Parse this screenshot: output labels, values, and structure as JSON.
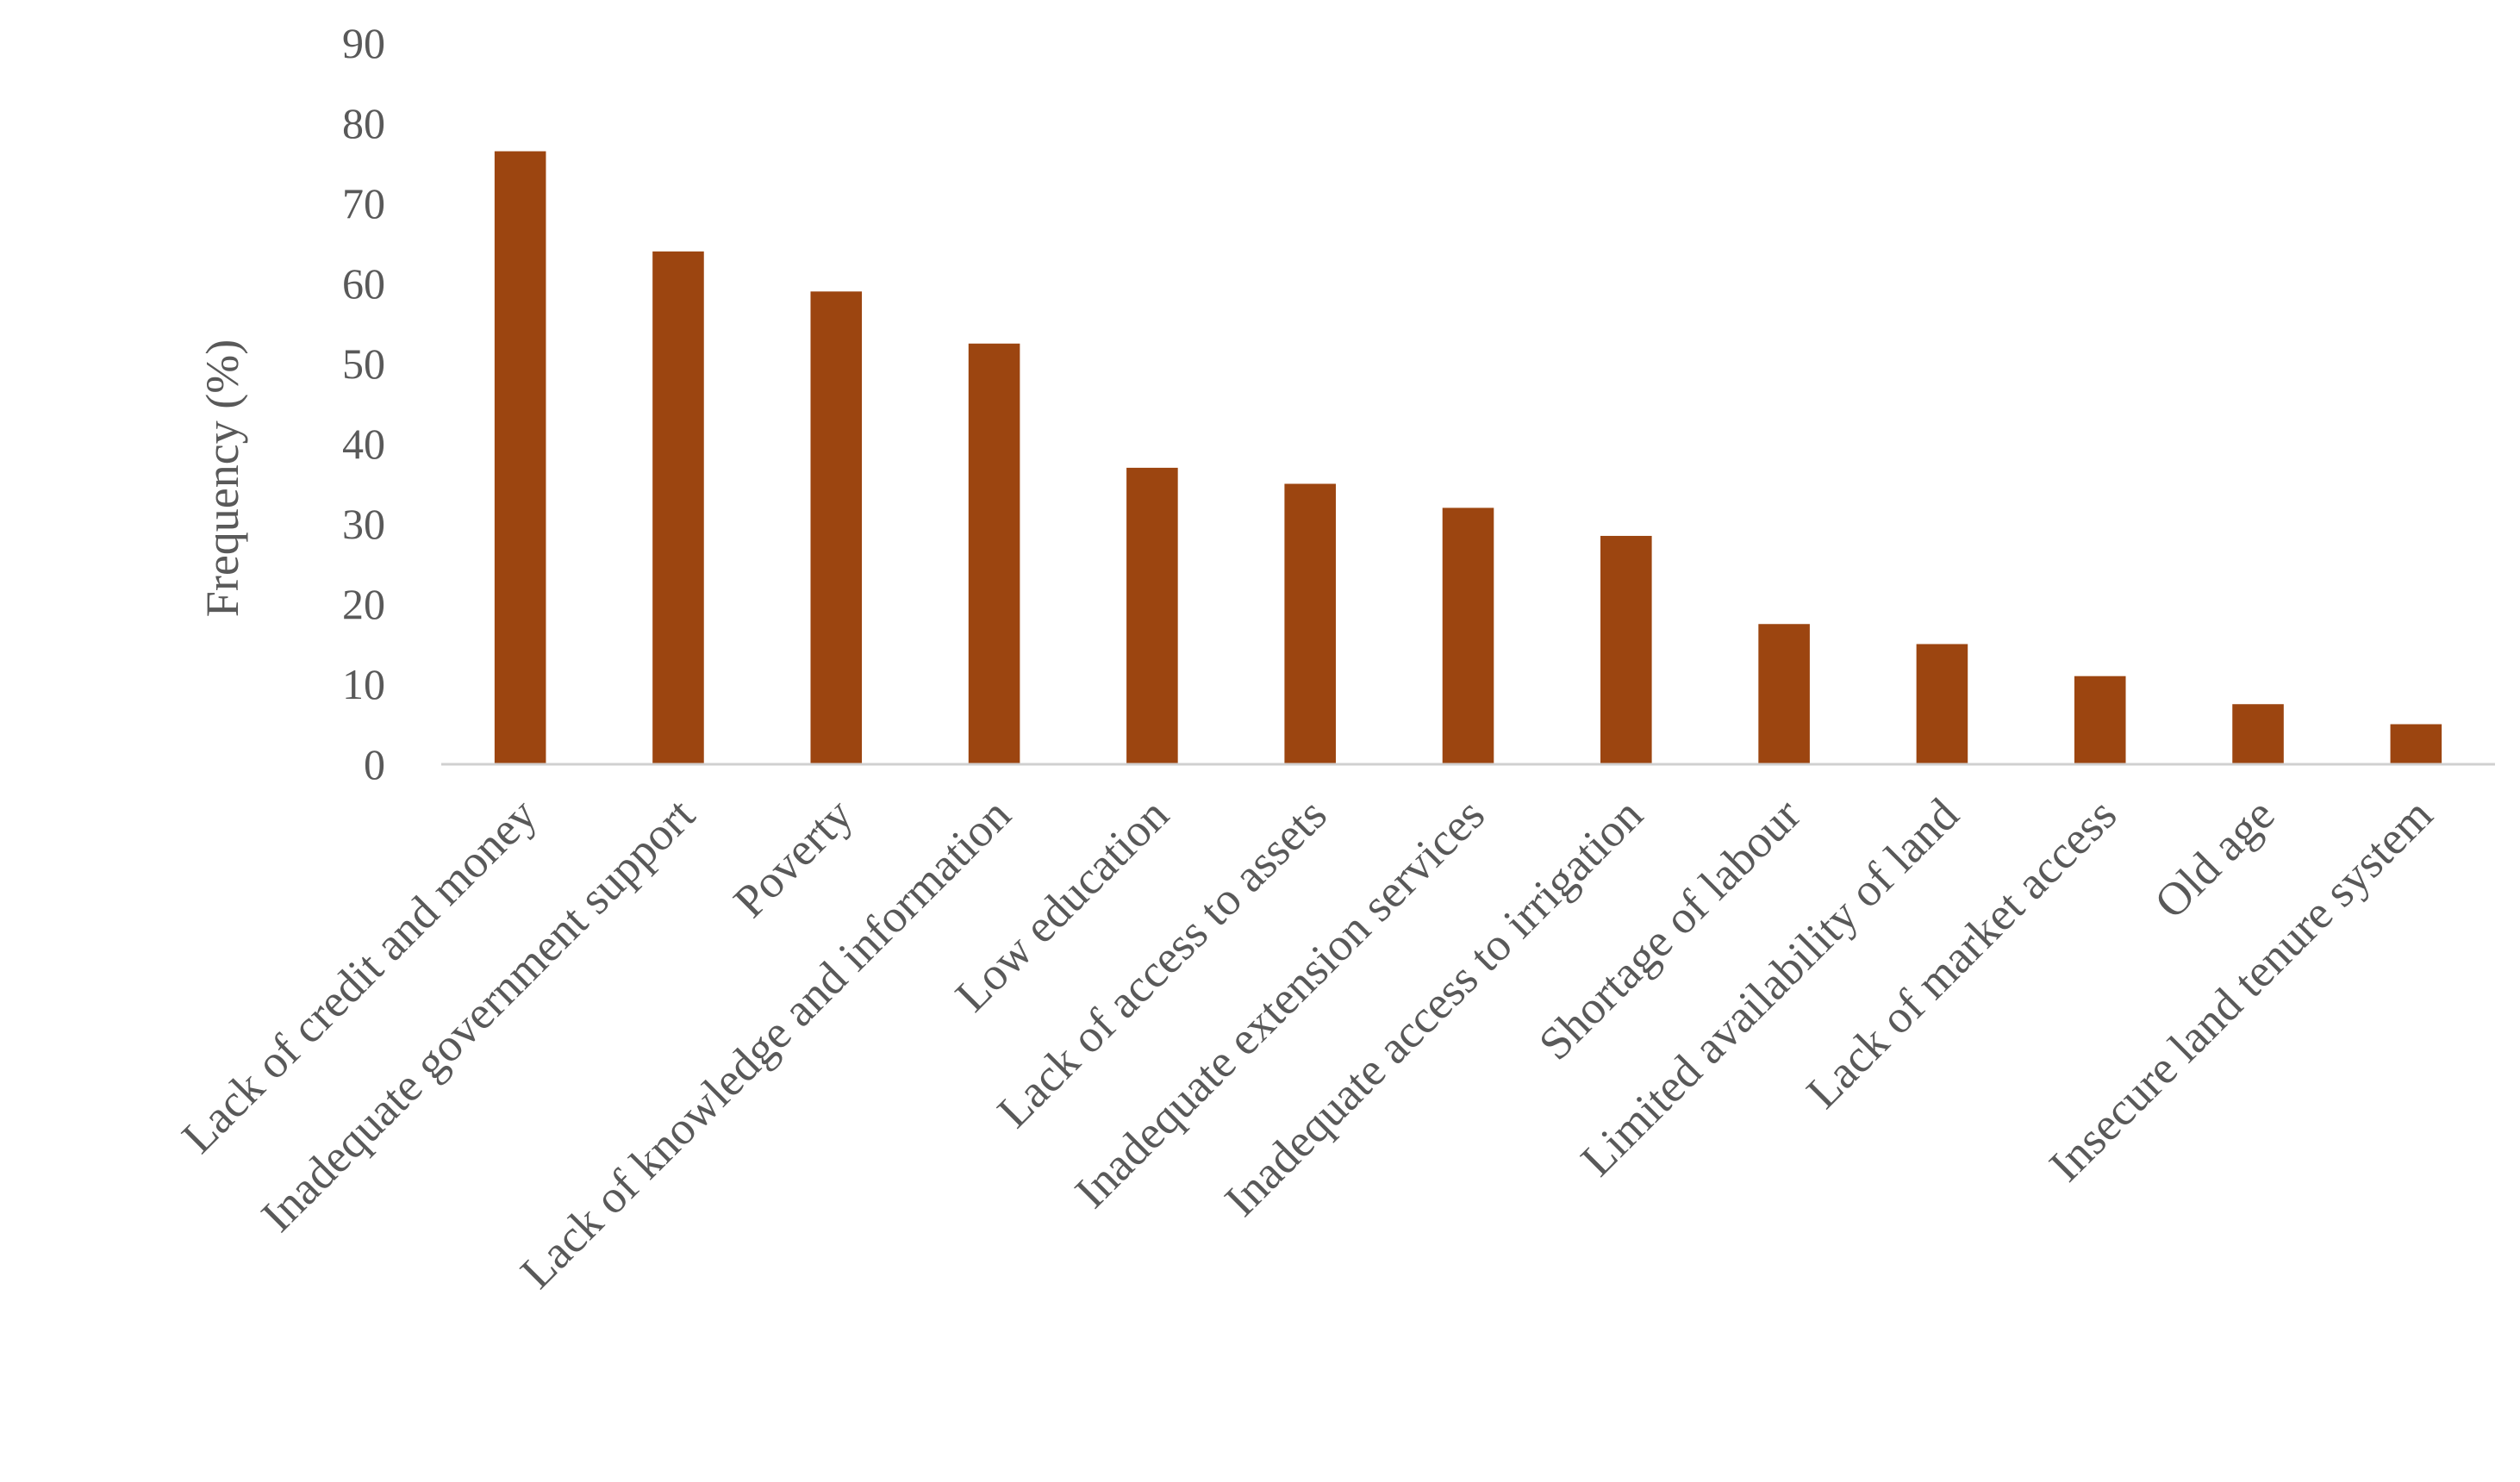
{
  "chart_data": {
    "type": "bar",
    "title": "",
    "xlabel": "",
    "ylabel": "Frequency (%)",
    "ylim": [
      0,
      90
    ],
    "yticks": [
      0,
      10,
      20,
      30,
      40,
      50,
      60,
      70,
      80,
      90
    ],
    "grid": false,
    "legend": "none",
    "bar_color": "#9C4510",
    "categories": [
      "Lack of credit and money",
      "Inadequate government support",
      "Poverty",
      "Lack of knowledge and information",
      "Low education",
      "Lack of access to assets",
      "Inadequate extension services",
      "Inadequate access to irrigation",
      "Shortage of labour",
      "Limited availability of land",
      "Lack of market access",
      "Old age",
      "Insecure land tenure system"
    ],
    "values": [
      76.5,
      64,
      59,
      52.5,
      37,
      35,
      32,
      28.5,
      17.5,
      15,
      11,
      7.5,
      5
    ]
  }
}
